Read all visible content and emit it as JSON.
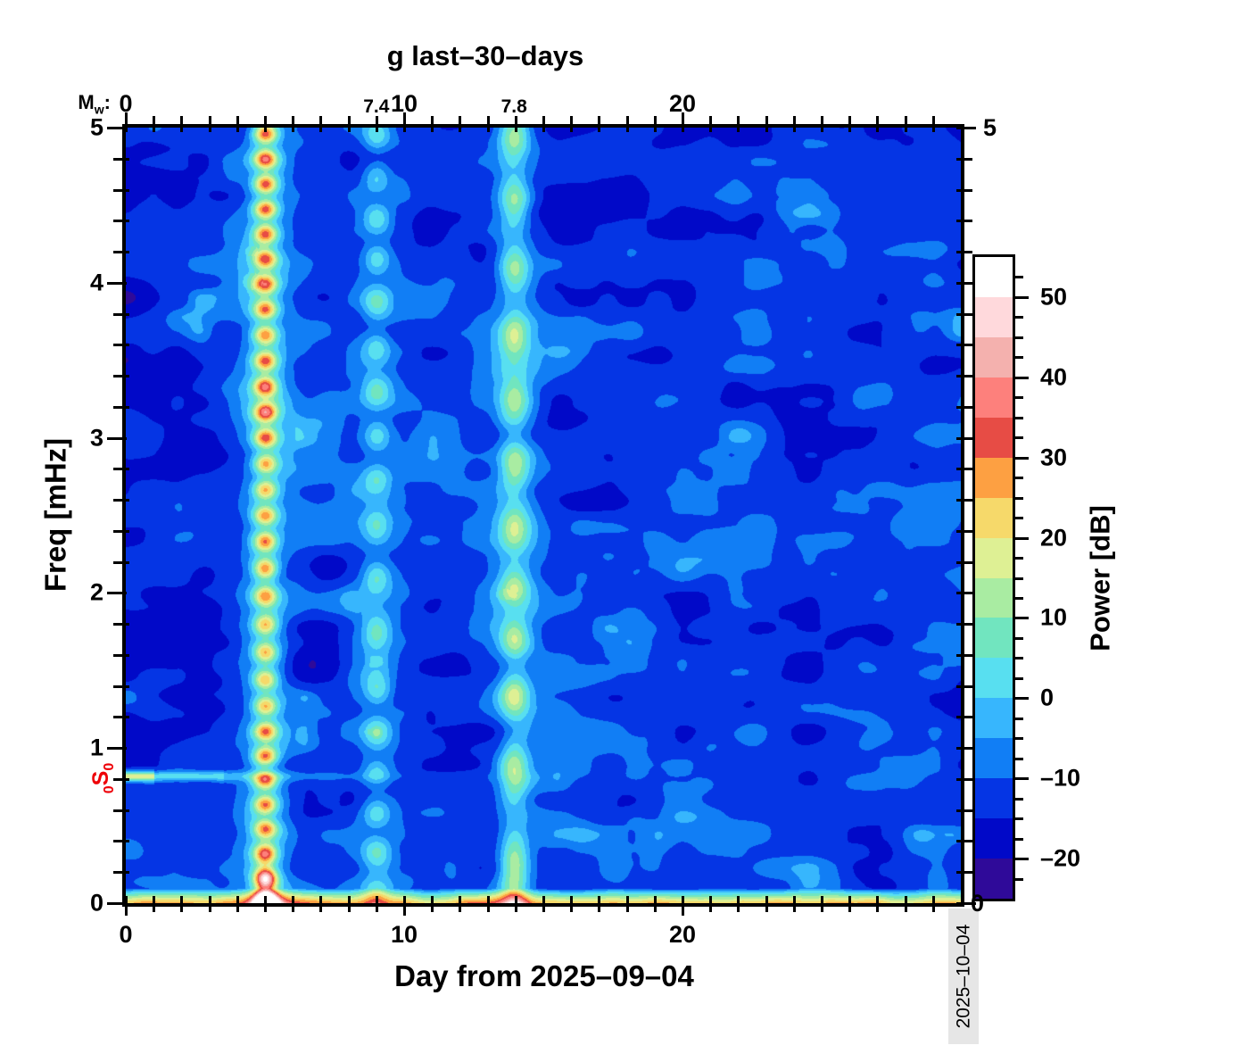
{
  "header": {
    "title": "g last–30–days"
  },
  "axes": {
    "top": {
      "mw": {
        "m": "M",
        "sub": "w",
        "colon": ":"
      },
      "major_ticks": [
        {
          "v": 0,
          "t": "0"
        },
        {
          "v": 10,
          "t": "10"
        },
        {
          "v": 20,
          "t": "20"
        }
      ],
      "minor_step": 1
    },
    "bottom": {
      "label": "Day from 2025–09–04",
      "major_ticks": [
        {
          "v": 0,
          "t": "0"
        },
        {
          "v": 10,
          "t": "10"
        },
        {
          "v": 20,
          "t": "20"
        }
      ],
      "minor_step": 1
    },
    "left": {
      "label": "Freq [mHz]",
      "major_ticks": [
        {
          "v": 0,
          "t": "0"
        },
        {
          "v": 1,
          "t": "1"
        },
        {
          "v": 2,
          "t": "2"
        },
        {
          "v": 3,
          "t": "3"
        },
        {
          "v": 4,
          "t": "4"
        },
        {
          "v": 5,
          "t": "5"
        }
      ],
      "minor_step": 0.2
    },
    "right": {
      "top_label": "5",
      "bottom_label": "0",
      "minor_step": 0.2
    }
  },
  "mode_label": {
    "sub1": "0",
    "letter": "S",
    "sub2": "0",
    "freq_mHz": 0.815,
    "color": "#ee0008"
  },
  "colorbar": {
    "label": "Power [dB]",
    "min_dB": -25,
    "max_dB": 55,
    "band_dB": 5,
    "minor_tick_dB": 2.5,
    "tick_labels": [
      {
        "v": 50,
        "t": "50"
      },
      {
        "v": 40,
        "t": "40"
      },
      {
        "v": 30,
        "t": "30"
      },
      {
        "v": 20,
        "t": "20"
      },
      {
        "v": 10,
        "t": "10"
      },
      {
        "v": 0,
        "t": "0"
      },
      {
        "v": -10,
        "t": "–10"
      },
      {
        "v": -20,
        "t": "–20"
      }
    ],
    "colors": [
      "#2f0a99",
      "#0109c8",
      "#0535e4",
      "#117ef5",
      "#37b6fd",
      "#58dff0",
      "#71e5bf",
      "#a9eca2",
      "#def094",
      "#f6d96a",
      "#fda042",
      "#e74c45",
      "#fd807c",
      "#f4b1ae",
      "#ffd9dc",
      "#ffffff"
    ]
  },
  "timestamp": "2025–10–04",
  "chart_data": {
    "type": "heatmap",
    "title": "g last–30–days",
    "xlabel": "Day from 2025–09–04",
    "ylabel": "Freq [mHz]",
    "zlabel": "Power [dB]",
    "x_range_days": [
      0,
      30
    ],
    "y_range_mHz": [
      0,
      5
    ],
    "z_range_dB": [
      -25,
      55
    ],
    "background_power_dB": [
      -22,
      -6
    ],
    "events": [
      {
        "day": 5.0,
        "magnitude_label": "",
        "peak_power_dB": 45,
        "note": "strong red beaded stripe, white-pink hotspot at f~0"
      },
      {
        "day": 9.0,
        "magnitude_label": "7.4",
        "peak_power_dB": 13,
        "note": "weak cyan beaded stripe"
      },
      {
        "day": 13.95,
        "magnitude_label": "7.8",
        "peak_power_dB": 22,
        "note": "yellow-green stripe, orange near f~0"
      }
    ],
    "spectral_line": {
      "mode": "0S0",
      "freq_mHz": 0.815,
      "power_dB_day0_1": 20,
      "power_dB_tail": 2
    },
    "bottom_band": {
      "below_mHz": 0.1,
      "power_dB": [
        14,
        24
      ]
    },
    "render": {
      "background": {
        "base": -21.5,
        "n1_amp": 14,
        "n2_amp": 5,
        "streak_bonus": 3,
        "left_darken": 2.2
      },
      "e1": {
        "day": 5.0,
        "halo_amp": 10,
        "halo_w": 1.0,
        "core_base": 12,
        "core_bead": 23,
        "core_w": 0.42,
        "bead_per": 0.165,
        "bot_amp": 34,
        "bot_w": 0.4,
        "bot_f": 0.55
      },
      "e2": {
        "day": 9.0,
        "halo_amp": 4,
        "halo_w": 0.9,
        "core_base": 2,
        "core_bead": 11,
        "core_w": 0.48,
        "bead_per": 0.3
      },
      "e3": {
        "day": 13.95,
        "halo_amp": 6,
        "halo_w": 1.0,
        "core_base": 6,
        "core_bead": 13,
        "core_w": 0.5,
        "bead_per": 0.42,
        "bot_amp": 14,
        "bot_w": 0.45,
        "bot_f": 0.5
      },
      "e4": {
        "day": 29.3,
        "amp": 6,
        "w": 0.8,
        "bot_f": 0.5
      },
      "line": {
        "f": 0.815,
        "sigma": 0.033,
        "amp_a": 34,
        "a_end": 1.0,
        "amp_b": 17,
        "b_end": 3.5,
        "tail_amp": 12,
        "tail_scale": 4
      },
      "bottom": {
        "amp": 32,
        "amp_var": 10,
        "fmax": 0.09,
        "pow": 0.8
      }
    }
  },
  "layout_note": "GMT-style spectrogram of seismic free oscillations, last 30 days"
}
